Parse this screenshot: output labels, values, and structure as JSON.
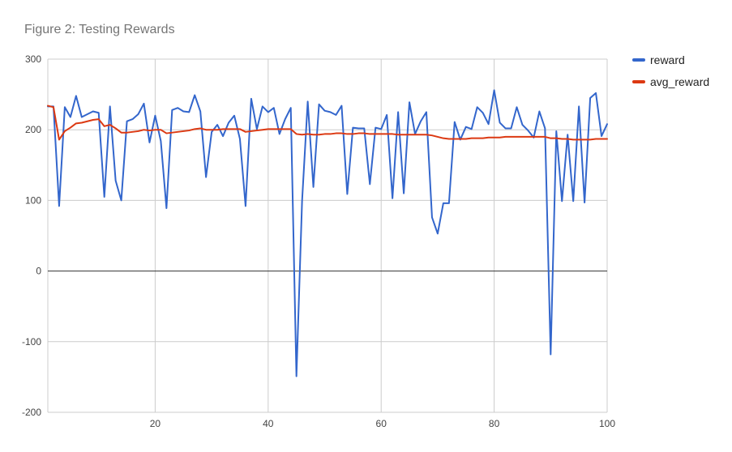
{
  "chart_data": {
    "type": "line",
    "title": "Figure 2: Testing Rewards",
    "xlabel": "",
    "ylabel": "",
    "xlim": [
      1,
      100
    ],
    "ylim": [
      -200,
      300
    ],
    "xticks": [
      20,
      40,
      60,
      80,
      100
    ],
    "yticks": [
      300,
      200,
      100,
      0,
      -100,
      -200
    ],
    "grid": true,
    "legend": "right",
    "x": [
      1,
      2,
      3,
      4,
      5,
      6,
      7,
      8,
      9,
      10,
      11,
      12,
      13,
      14,
      15,
      16,
      17,
      18,
      19,
      20,
      21,
      22,
      23,
      24,
      25,
      26,
      27,
      28,
      29,
      30,
      31,
      32,
      33,
      34,
      35,
      36,
      37,
      38,
      39,
      40,
      41,
      42,
      43,
      44,
      45,
      46,
      47,
      48,
      49,
      50,
      51,
      52,
      53,
      54,
      55,
      56,
      57,
      58,
      59,
      60,
      61,
      62,
      63,
      64,
      65,
      66,
      67,
      68,
      69,
      70,
      71,
      72,
      73,
      74,
      75,
      76,
      77,
      78,
      79,
      80,
      81,
      82,
      83,
      84,
      85,
      86,
      87,
      88,
      89,
      90,
      91,
      92,
      93,
      94,
      95,
      96,
      97,
      98,
      99,
      100
    ],
    "series": [
      {
        "name": "reward",
        "color": "#3366cc",
        "values": [
          233,
          233,
          92,
          232,
          218,
          248,
          218,
          222,
          226,
          224,
          105,
          233,
          128,
          100,
          212,
          215,
          222,
          237,
          182,
          220,
          184,
          89,
          228,
          231,
          226,
          225,
          249,
          226,
          133,
          197,
          207,
          191,
          210,
          220,
          187,
          92,
          244,
          201,
          233,
          225,
          231,
          194,
          215,
          231,
          -149,
          99,
          240,
          119,
          236,
          227,
          225,
          221,
          234,
          109,
          203,
          202,
          202,
          123,
          203,
          201,
          221,
          103,
          225,
          110,
          239,
          194,
          212,
          225,
          76,
          53,
          96,
          96,
          211,
          186,
          204,
          201,
          232,
          224,
          208,
          256,
          210,
          202,
          202,
          232,
          207,
          199,
          189,
          226,
          202,
          -118,
          198,
          99,
          193,
          99,
          233,
          97,
          245,
          252,
          191,
          208
        ]
      },
      {
        "name": "avg_reward",
        "color": "#dc3912",
        "values": [
          234,
          232,
          186,
          198,
          203,
          209,
          210,
          212,
          214,
          215,
          205,
          207,
          202,
          196,
          196,
          197,
          198,
          200,
          199,
          200,
          200,
          195,
          196,
          197,
          198,
          199,
          201,
          202,
          200,
          200,
          200,
          201,
          201,
          201,
          201,
          197,
          198,
          199,
          200,
          201,
          201,
          201,
          201,
          201,
          194,
          193,
          194,
          193,
          193,
          194,
          194,
          195,
          195,
          194,
          194,
          195,
          195,
          194,
          194,
          194,
          194,
          194,
          193,
          193,
          193,
          193,
          193,
          193,
          192,
          190,
          188,
          187,
          187,
          187,
          187,
          188,
          188,
          188,
          189,
          189,
          189,
          190,
          190,
          190,
          190,
          190,
          190,
          190,
          190,
          188,
          188,
          187,
          187,
          186,
          186,
          186,
          186,
          187,
          187,
          187
        ]
      }
    ]
  }
}
